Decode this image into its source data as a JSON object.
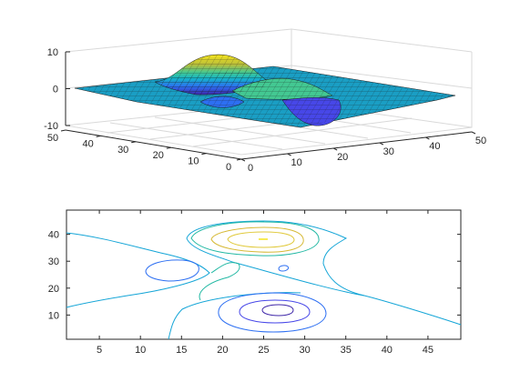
{
  "chart_data": [
    {
      "type": "surface",
      "title": "",
      "xlabel": "",
      "ylabel": "",
      "zlabel": "",
      "xlim": [
        0,
        50
      ],
      "ylim": [
        0,
        50
      ],
      "zlim": [
        -10,
        10
      ],
      "x_ticks": [
        "0",
        "10",
        "20",
        "30",
        "40",
        "50"
      ],
      "y_ticks": [
        "0",
        "10",
        "20",
        "30",
        "40",
        "50"
      ],
      "z_ticks": [
        "-10",
        "0",
        "10"
      ],
      "grid": true,
      "colormap": [
        "#3e26a8",
        "#2d6ff2",
        "#14b3c9",
        "#43c892",
        "#b9bd3a",
        "#f5e41d"
      ],
      "surface_peaks": [
        {
          "x": 25,
          "y": 38,
          "z": 8
        },
        {
          "x": 28,
          "y": 12,
          "z": -6.5
        },
        {
          "x": 14,
          "y": 30,
          "z": -3
        },
        {
          "x": 22,
          "y": 18,
          "z": 2
        }
      ]
    },
    {
      "type": "contour",
      "title": "",
      "xlabel": "",
      "ylabel": "",
      "xlim": [
        1,
        49
      ],
      "ylim": [
        1,
        49
      ],
      "x_ticks": [
        "5",
        "10",
        "15",
        "20",
        "25",
        "30",
        "35",
        "40",
        "45"
      ],
      "y_ticks": [
        "10",
        "20",
        "30",
        "40"
      ],
      "grid": false,
      "levels": [
        {
          "level": -6,
          "color": "#3e26a8"
        },
        {
          "level": -4,
          "color": "#4747e8"
        },
        {
          "level": -2,
          "color": "#2d6ff2"
        },
        {
          "level": 0,
          "color": "#14a5d7"
        },
        {
          "level": 2,
          "color": "#21b8a3"
        },
        {
          "level": 4,
          "color": "#7ec26a"
        },
        {
          "level": 6,
          "color": "#d6b935"
        },
        {
          "level": 8,
          "color": "#f5e41d"
        }
      ]
    }
  ]
}
